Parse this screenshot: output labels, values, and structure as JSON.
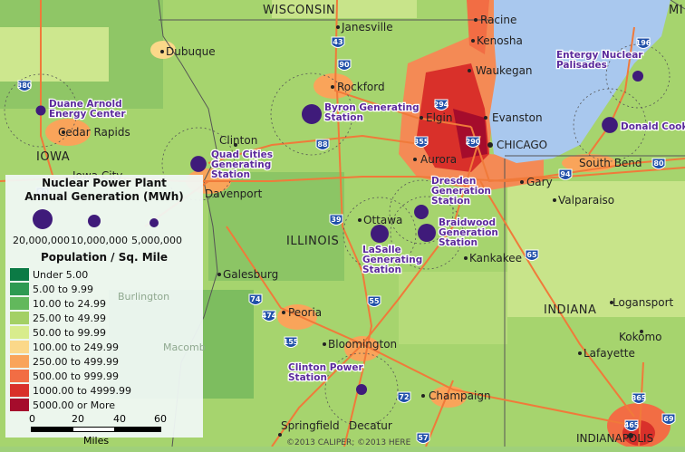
{
  "states": [
    "WISCONSIN",
    "IOWA",
    "ILLINOIS",
    "INDIANA",
    "MI"
  ],
  "cities": [
    "Janesville",
    "Racine",
    "Kenosha",
    "Dubuque",
    "Waukegan",
    "Rockford",
    "Elgin",
    "Evanston",
    "CHICAGO",
    "Cedar Rapids",
    "Iowa City",
    "Davenport",
    "Clinton",
    "Aurora",
    "Gary",
    "South Bend",
    "Valparaiso",
    "Ottawa",
    "Kankakee",
    "Galesburg",
    "Burlington",
    "Peoria",
    "Macomb",
    "Bloomington",
    "Champaign",
    "Springfield",
    "Decatur",
    "Lafayette",
    "Kokomo",
    "Logansport",
    "INDIANAPOLIS"
  ],
  "highways": [
    "43",
    "90",
    "380",
    "80",
    "88",
    "39",
    "294",
    "355",
    "290",
    "94",
    "196",
    "80",
    "65",
    "55",
    "74",
    "474",
    "155",
    "72",
    "57",
    "465",
    "865",
    "69"
  ],
  "plants": [
    {
      "name": [
        "Duane Arnold",
        "Energy Center"
      ],
      "generation_mwh": 5000000
    },
    {
      "name": [
        "Quad Cities",
        "Generating",
        "Station"
      ],
      "generation_mwh": 13000000
    },
    {
      "name": [
        "Byron Generating",
        "Station"
      ],
      "generation_mwh": 20000000
    },
    {
      "name": [
        "LaSalle",
        "Generating",
        "Station"
      ],
      "generation_mwh": 16500000
    },
    {
      "name": [
        "Dresden",
        "Generation",
        "Station"
      ],
      "generation_mwh": 10500000
    },
    {
      "name": [
        "Braidwood",
        "Generation",
        "Station"
      ],
      "generation_mwh": 16500000
    },
    {
      "name": [
        "Clinton Power",
        "Station"
      ],
      "generation_mwh": 6000000
    },
    {
      "name": [
        "Donald Cook"
      ],
      "generation_mwh": 13000000
    },
    {
      "name": [
        "Entergy Nuclear",
        "Palisades"
      ],
      "generation_mwh": 6000000
    }
  ],
  "plant_color": "#3f1b7a",
  "copyright": "©2013 CALIPER; ©2013 HERE",
  "legend": {
    "title1": "Nuclear Power Plant",
    "title2": "Annual Generation (MWh)",
    "sizes": [
      "20,000,000",
      "10,000,000",
      "5,000,000"
    ],
    "pop_title": "Population / Sq. Mile",
    "classes": [
      {
        "label": "Under 5.00",
        "color": "#0b7a45"
      },
      {
        "label": "5.00 to 9.99",
        "color": "#2e9a52"
      },
      {
        "label": "10.00 to 24.99",
        "color": "#62b85c"
      },
      {
        "label": "25.00 to 49.99",
        "color": "#a3d065"
      },
      {
        "label": "50.00 to 99.99",
        "color": "#d8ec8c"
      },
      {
        "label": "100.00 to 249.99",
        "color": "#fbd889"
      },
      {
        "label": "250.00 to 499.99",
        "color": "#f9a45a"
      },
      {
        "label": "500.00 to 999.99",
        "color": "#f26d44"
      },
      {
        "label": "1000.00 to 4999.99",
        "color": "#d9302a"
      },
      {
        "label": "5000.00 or More",
        "color": "#a50c2c"
      }
    ],
    "scale_ticks": [
      "0",
      "20",
      "40",
      "60"
    ],
    "scale_unit": "Miles"
  }
}
